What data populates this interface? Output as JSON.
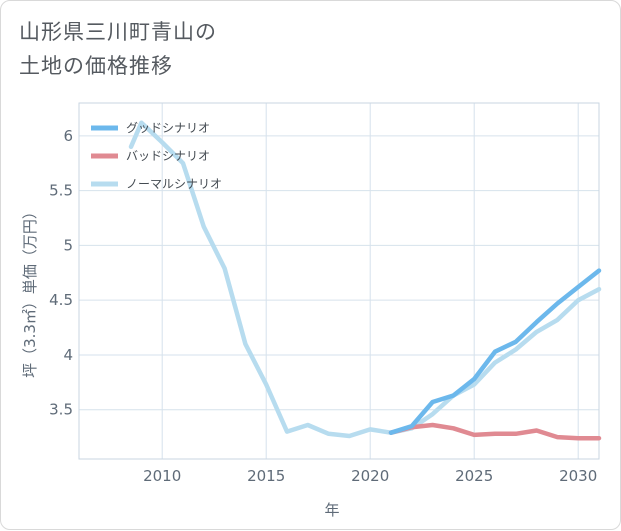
{
  "title_lines": [
    "山形県三川町青山の",
    "土地の価格推移"
  ],
  "chart_data": {
    "type": "line",
    "xlabel": "年",
    "ylabel": "坪（3.3㎡）単価（万円）",
    "xlim": [
      2006,
      2031
    ],
    "ylim": [
      3.05,
      6.3
    ],
    "x_ticks": [
      2010,
      2015,
      2020,
      2025,
      2030
    ],
    "y_ticks": [
      3.5,
      4,
      4.5,
      5,
      5.5,
      6
    ],
    "grid": true,
    "legend_position": "top-left",
    "series": [
      {
        "name": "グッドシナリオ",
        "color": "#6cb8ec",
        "x": [
          2021,
          2022,
          2023,
          2024,
          2025,
          2026,
          2027,
          2028,
          2029,
          2030,
          2031
        ],
        "y": [
          3.29,
          3.35,
          3.57,
          3.63,
          3.78,
          4.03,
          4.12,
          4.3,
          4.47,
          4.62,
          4.77
        ]
      },
      {
        "name": "バッドシナリオ",
        "color": "#e08a92",
        "x": [
          2021,
          2022,
          2023,
          2024,
          2025,
          2026,
          2027,
          2028,
          2029,
          2030,
          2031
        ],
        "y": [
          3.29,
          3.34,
          3.36,
          3.33,
          3.27,
          3.28,
          3.28,
          3.31,
          3.25,
          3.24,
          3.24
        ]
      },
      {
        "name": "ノーマルシナリオ",
        "color": "#b7dcef",
        "x": [
          2008.5,
          2009,
          2010,
          2011,
          2012,
          2013,
          2014,
          2015,
          2016,
          2017,
          2018,
          2019,
          2020,
          2021,
          2022,
          2023,
          2024,
          2025,
          2026,
          2027,
          2028,
          2029,
          2030,
          2031
        ],
        "y": [
          5.9,
          6.12,
          5.94,
          5.75,
          5.17,
          4.79,
          4.1,
          3.73,
          3.3,
          3.36,
          3.28,
          3.26,
          3.32,
          3.29,
          3.33,
          3.46,
          3.63,
          3.73,
          3.93,
          4.05,
          4.21,
          4.32,
          4.5,
          4.6
        ]
      }
    ]
  }
}
